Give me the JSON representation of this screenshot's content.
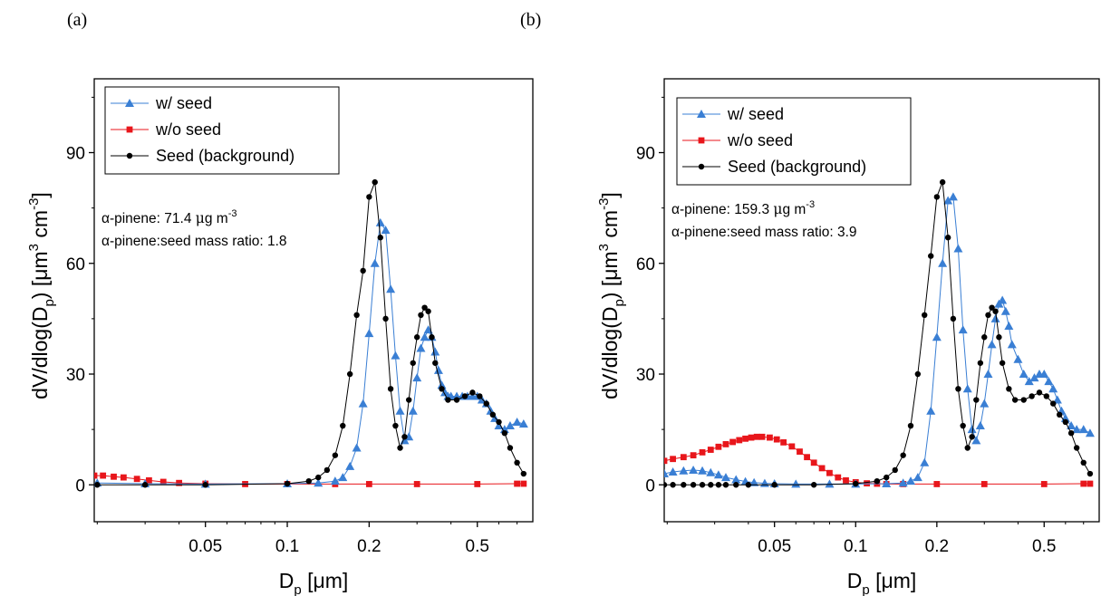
{
  "panels": [
    {
      "label": "(a)",
      "annotations": [
        "α-pinene: 71.4 μg m⁻³",
        "α-pinene:seed mass ratio: 1.8"
      ],
      "annotation_parts": [
        {
          "pre": "α-pinene: 71.4 ",
          "mu": "μ",
          "post": "g m",
          "sup": "-3"
        },
        {
          "pre": "α-pinene:seed mass ratio: 1.8"
        }
      ]
    },
    {
      "label": "(b)",
      "annotations": [
        "α-pinene: 159.3 μg m⁻³",
        "α-pinene:seed mass ratio: 3.9"
      ],
      "annotation_parts": [
        {
          "pre": "α-pinene: 159.3 ",
          "mu": "μ",
          "post": "g m",
          "sup": "-3"
        },
        {
          "pre": "α-pinene:seed mass ratio: 3.9"
        }
      ]
    }
  ],
  "axis_text": {
    "ylabel_main": "dV/dlog(D",
    "ylabel_sub": "p",
    "ylabel_mid": ") [μm",
    "ylabel_sup3": "3",
    "ylabel_cm": " cm",
    "ylabel_supm3": "-3",
    "ylabel_close": "]",
    "xlabel_main": "D",
    "xlabel_sub": "p",
    "xlabel_unit": " [μm]"
  },
  "colors": {
    "with_seed": "#3a7fd4",
    "without_seed": "#e8161b",
    "seed_background": "#000000"
  },
  "chart_data": [
    {
      "type": "line",
      "x_scale": "log",
      "xlim": [
        0.0195,
        0.8
      ],
      "ylim": [
        -10,
        110
      ],
      "xticks": [
        0.05,
        0.1,
        0.2,
        0.5
      ],
      "xtick_labels": [
        "0.05",
        "0.1",
        "0.2",
        "0.5"
      ],
      "yticks": [
        0,
        30,
        60,
        90
      ],
      "ytick_labels": [
        "0",
        "30",
        "60",
        "90"
      ],
      "xlabel": "Dp [μm]",
      "ylabel": "dV/dlog(Dp) [μm3 cm-3]",
      "legend_position": "top-left",
      "series": [
        {
          "name": "w/   seed",
          "color": "#3a7fd4",
          "marker": "triangle",
          "x": [
            0.02,
            0.03,
            0.05,
            0.1,
            0.13,
            0.15,
            0.16,
            0.17,
            0.18,
            0.19,
            0.2,
            0.21,
            0.22,
            0.23,
            0.24,
            0.25,
            0.26,
            0.27,
            0.28,
            0.29,
            0.3,
            0.31,
            0.32,
            0.33,
            0.34,
            0.35,
            0.36,
            0.37,
            0.38,
            0.39,
            0.4,
            0.42,
            0.44,
            0.46,
            0.48,
            0.5,
            0.52,
            0.54,
            0.56,
            0.58,
            0.6,
            0.63,
            0.66,
            0.7,
            0.74
          ],
          "y": [
            0.5,
            0.3,
            0.2,
            0.3,
            0.5,
            1,
            2,
            5,
            10,
            22,
            41,
            60,
            71,
            69,
            53,
            35,
            20,
            12,
            13,
            20,
            29,
            37,
            40,
            42,
            40,
            36,
            31,
            27,
            25,
            24,
            24,
            24,
            24,
            24,
            24,
            24,
            23,
            22,
            20,
            18,
            16,
            15,
            16,
            17,
            16.5
          ]
        },
        {
          "name": "w/o seed",
          "color": "#e8161b",
          "marker": "square",
          "x": [
            0.0195,
            0.021,
            0.023,
            0.025,
            0.028,
            0.031,
            0.035,
            0.04,
            0.05,
            0.07,
            0.1,
            0.15,
            0.2,
            0.3,
            0.5,
            0.7,
            0.74
          ],
          "y": [
            2.5,
            2.5,
            2.2,
            2,
            1.6,
            1.2,
            0.8,
            0.5,
            0.3,
            0.2,
            0.2,
            0.2,
            0.2,
            0.2,
            0.2,
            0.3,
            0.3
          ]
        },
        {
          "name": "Seed (background)",
          "color": "#000000",
          "marker": "circle",
          "x": [
            0.02,
            0.03,
            0.05,
            0.1,
            0.12,
            0.13,
            0.14,
            0.15,
            0.16,
            0.17,
            0.18,
            0.19,
            0.2,
            0.21,
            0.22,
            0.23,
            0.24,
            0.25,
            0.26,
            0.27,
            0.28,
            0.29,
            0.3,
            0.31,
            0.32,
            0.33,
            0.34,
            0.35,
            0.37,
            0.39,
            0.42,
            0.45,
            0.48,
            0.51,
            0.54,
            0.57,
            0.6,
            0.63,
            0.66,
            0.7,
            0.74
          ],
          "y": [
            0,
            0,
            0,
            0.3,
            1,
            2,
            4,
            8,
            16,
            30,
            46,
            58,
            78,
            82,
            67,
            45,
            26,
            16,
            10,
            13,
            23,
            33,
            40,
            46,
            48,
            47,
            40,
            33,
            26,
            23,
            23,
            24,
            25,
            24,
            22,
            19,
            17,
            14,
            10,
            6,
            3
          ]
        }
      ]
    },
    {
      "type": "line",
      "x_scale": "log",
      "xlim": [
        0.0195,
        0.8
      ],
      "ylim": [
        -10,
        110
      ],
      "xticks": [
        0.05,
        0.1,
        0.2,
        0.5
      ],
      "xtick_labels": [
        "0.05",
        "0.1",
        "0.2",
        "0.5"
      ],
      "yticks": [
        0,
        30,
        60,
        90
      ],
      "ytick_labels": [
        "0",
        "30",
        "60",
        "90"
      ],
      "xlabel": "Dp [μm]",
      "ylabel": "dV/dlog(Dp) [μm3 cm-3]",
      "legend_position": "top-left",
      "series": [
        {
          "name": "w/   seed",
          "color": "#3a7fd4",
          "marker": "triangle",
          "x": [
            0.0195,
            0.021,
            0.023,
            0.025,
            0.027,
            0.029,
            0.031,
            0.033,
            0.036,
            0.039,
            0.042,
            0.046,
            0.05,
            0.06,
            0.08,
            0.1,
            0.13,
            0.15,
            0.16,
            0.17,
            0.18,
            0.19,
            0.2,
            0.21,
            0.22,
            0.23,
            0.24,
            0.25,
            0.26,
            0.27,
            0.28,
            0.29,
            0.3,
            0.31,
            0.32,
            0.33,
            0.34,
            0.35,
            0.36,
            0.37,
            0.38,
            0.4,
            0.42,
            0.44,
            0.46,
            0.48,
            0.5,
            0.52,
            0.54,
            0.56,
            0.58,
            0.6,
            0.63,
            0.66,
            0.7,
            0.74
          ],
          "y": [
            3,
            3.5,
            3.8,
            4,
            3.8,
            3.3,
            2.7,
            2,
            1.4,
            0.9,
            0.6,
            0.4,
            0.3,
            0.2,
            0.2,
            0.2,
            0.3,
            0.5,
            1,
            2,
            6,
            20,
            40,
            60,
            77,
            78,
            64,
            42,
            26,
            15,
            12,
            16,
            22,
            30,
            38,
            45,
            49,
            50,
            47,
            43,
            38,
            34,
            30,
            28,
            29,
            30,
            30,
            28,
            26,
            23,
            20,
            18,
            16,
            15,
            15,
            14
          ]
        },
        {
          "name": "w/o seed",
          "color": "#e8161b",
          "marker": "square",
          "x": [
            0.0195,
            0.021,
            0.023,
            0.025,
            0.027,
            0.029,
            0.031,
            0.033,
            0.035,
            0.037,
            0.039,
            0.041,
            0.043,
            0.045,
            0.048,
            0.051,
            0.054,
            0.058,
            0.062,
            0.066,
            0.07,
            0.075,
            0.08,
            0.086,
            0.092,
            0.1,
            0.11,
            0.12,
            0.13,
            0.15,
            0.2,
            0.3,
            0.5,
            0.7,
            0.74
          ],
          "y": [
            6.5,
            7,
            7.5,
            8,
            8.8,
            9.5,
            10.3,
            11,
            11.6,
            12.1,
            12.5,
            12.8,
            13,
            13,
            12.8,
            12.3,
            11.5,
            10.4,
            9,
            7.5,
            6,
            4.5,
            3.2,
            2,
            1.2,
            0.7,
            0.4,
            0.3,
            0.2,
            0.2,
            0.2,
            0.2,
            0.2,
            0.3,
            0.3
          ]
        },
        {
          "name": "Seed (background)",
          "color": "#000000",
          "marker": "circle",
          "x": [
            0.0195,
            0.021,
            0.023,
            0.025,
            0.027,
            0.029,
            0.031,
            0.033,
            0.036,
            0.04,
            0.05,
            0.07,
            0.1,
            0.12,
            0.13,
            0.14,
            0.15,
            0.16,
            0.17,
            0.18,
            0.19,
            0.2,
            0.21,
            0.22,
            0.23,
            0.24,
            0.25,
            0.26,
            0.27,
            0.28,
            0.29,
            0.3,
            0.31,
            0.32,
            0.33,
            0.34,
            0.35,
            0.37,
            0.39,
            0.42,
            0.45,
            0.48,
            0.51,
            0.54,
            0.57,
            0.6,
            0.63,
            0.66,
            0.7,
            0.74
          ],
          "y": [
            0,
            0,
            0,
            0,
            0,
            0,
            0,
            0,
            0,
            0,
            0,
            0,
            0.3,
            1,
            2,
            4,
            8,
            16,
            30,
            46,
            62,
            78,
            82,
            67,
            45,
            26,
            16,
            10,
            13,
            23,
            33,
            40,
            46,
            48,
            47,
            40,
            33,
            26,
            23,
            23,
            24,
            25,
            24,
            22,
            19,
            17,
            14,
            10,
            6,
            3
          ]
        }
      ]
    }
  ]
}
